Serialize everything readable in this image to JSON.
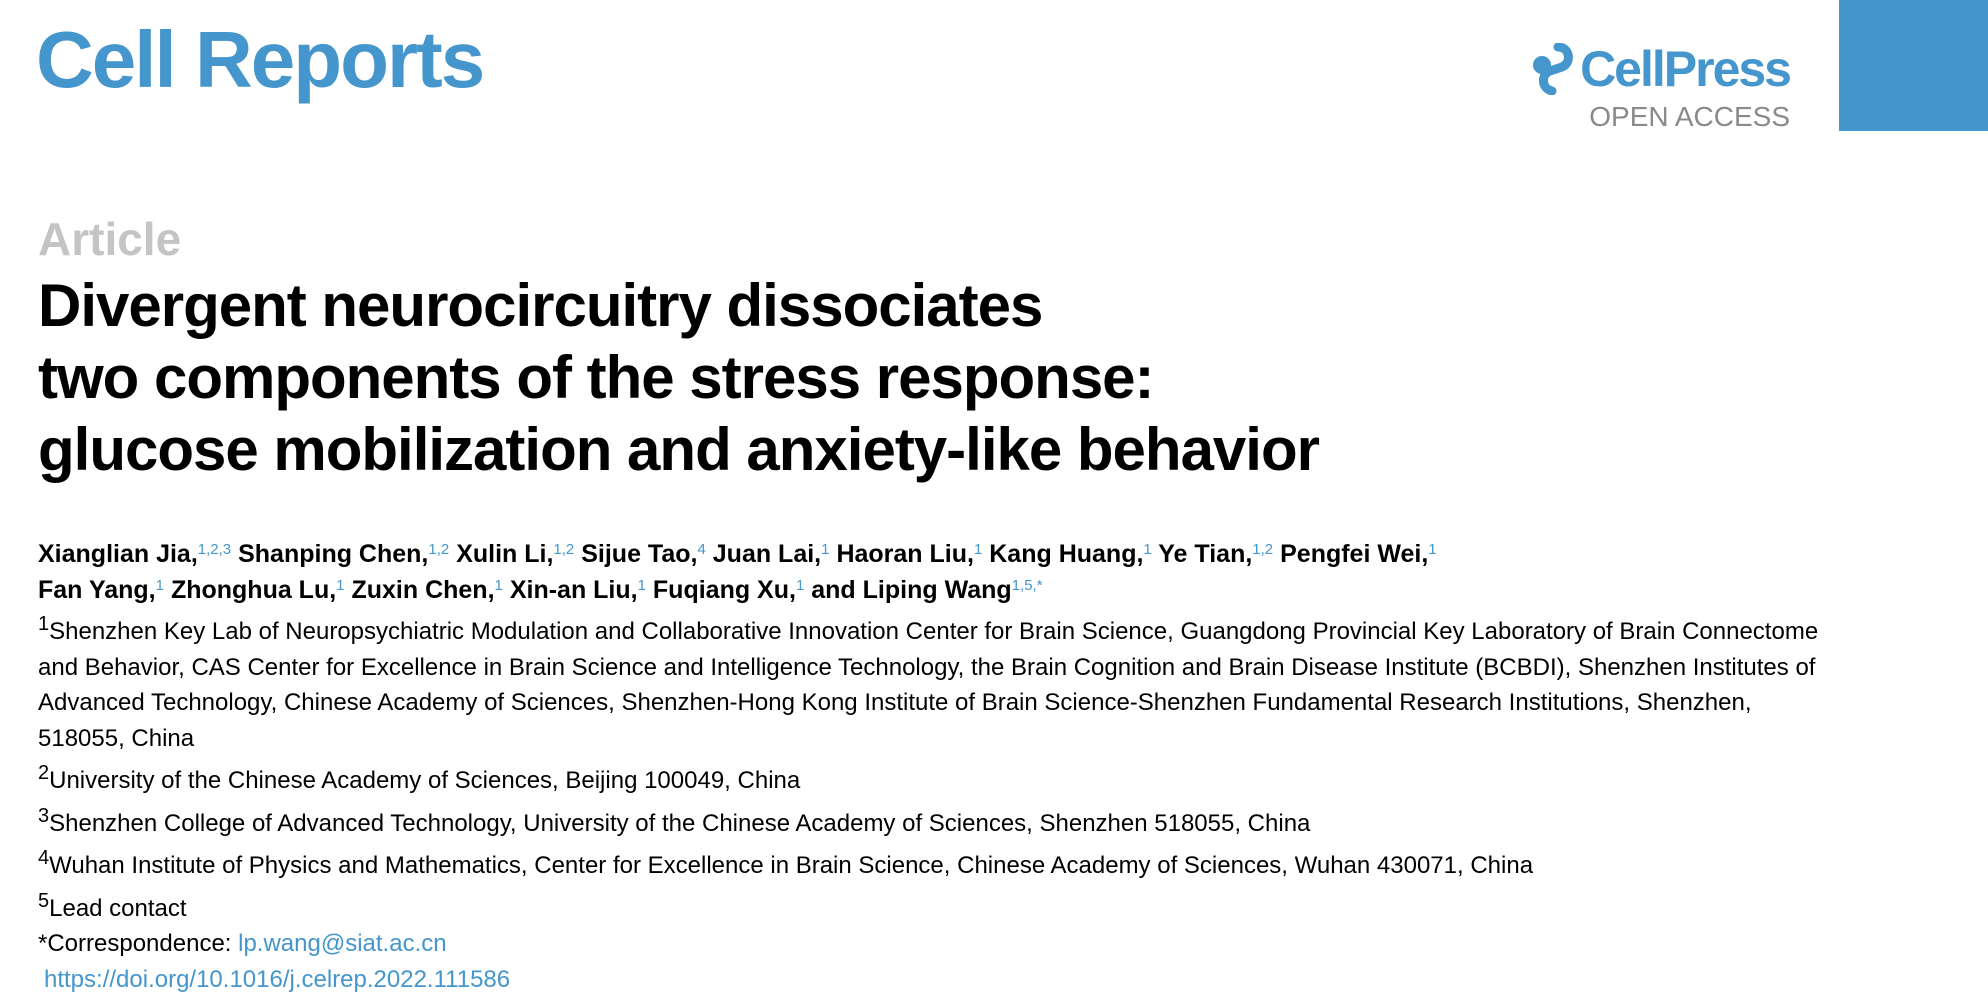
{
  "header": {
    "journal": "Cell Reports",
    "publisher": "CellPress",
    "access": "OPEN ACCESS",
    "brand_color": "#4496cc"
  },
  "article_type": "Article",
  "title_lines": [
    "Divergent neurocircuitry dissociates",
    "two components of the stress response:",
    "glucose mobilization and anxiety-like behavior"
  ],
  "authors": [
    {
      "name": "Xianglian Jia,",
      "sup": "1,2,3"
    },
    {
      "name": "Shanping Chen,",
      "sup": "1,2"
    },
    {
      "name": "Xulin Li,",
      "sup": "1,2"
    },
    {
      "name": "Sijue Tao,",
      "sup": "4"
    },
    {
      "name": "Juan Lai,",
      "sup": "1"
    },
    {
      "name": "Haoran Liu,",
      "sup": "1"
    },
    {
      "name": "Kang Huang,",
      "sup": "1"
    },
    {
      "name": "Ye Tian,",
      "sup": "1,2"
    },
    {
      "name": "Pengfei Wei,",
      "sup": "1"
    },
    {
      "name": "Fan Yang,",
      "sup": "1"
    },
    {
      "name": "Zhonghua Lu,",
      "sup": "1"
    },
    {
      "name": "Zuxin Chen,",
      "sup": "1"
    },
    {
      "name": "Xin-an Liu,",
      "sup": "1"
    },
    {
      "name": "Fuqiang Xu,",
      "sup": "1"
    },
    {
      "name": "and Liping Wang",
      "sup": "1,5,*"
    }
  ],
  "affiliations": [
    {
      "num": "1",
      "text": "Shenzhen Key Lab of Neuropsychiatric Modulation and Collaborative Innovation Center for Brain Science, Guangdong Provincial Key Laboratory of Brain Connectome and Behavior, CAS Center for Excellence in Brain Science and Intelligence Technology, the Brain Cognition and Brain Disease Institute (BCBDI), Shenzhen Institutes of Advanced Technology, Chinese Academy of Sciences, Shenzhen-Hong Kong Institute of Brain Science-Shenzhen Fundamental Research Institutions, Shenzhen, 518055, China"
    },
    {
      "num": "2",
      "text": "University of the Chinese Academy of Sciences, Beijing 100049, China"
    },
    {
      "num": "3",
      "text": "Shenzhen College of Advanced Technology, University of the Chinese Academy of Sciences, Shenzhen 518055, China"
    },
    {
      "num": "4",
      "text": "Wuhan Institute of Physics and Mathematics, Center for Excellence in Brain Science, Chinese Academy of Sciences, Wuhan 430071, China"
    },
    {
      "num": "5",
      "text": "Lead contact"
    }
  ],
  "correspondence": {
    "label": "*Correspondence:",
    "email": "lp.wang@siat.ac.cn"
  },
  "doi": "https://doi.org/10.1016/j.celrep.2022.111586"
}
